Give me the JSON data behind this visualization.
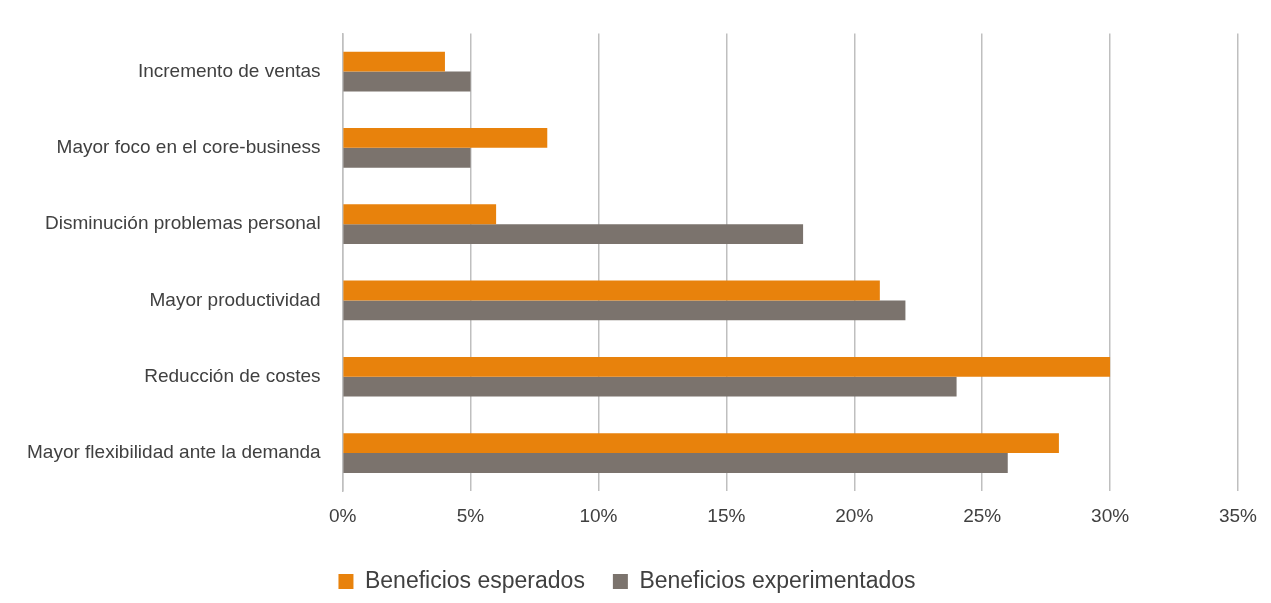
{
  "chart_data": {
    "type": "bar",
    "orientation": "horizontal",
    "categories": [
      "Incremento de ventas",
      "Mayor foco en el core-business",
      "Disminución problemas personal",
      "Mayor productividad",
      "Reducción de costes",
      "Mayor flexibilidad ante la demanda"
    ],
    "series": [
      {
        "name": "Beneficios esperados",
        "color": "#e8820c",
        "values": [
          4,
          8,
          6,
          21,
          30,
          28
        ]
      },
      {
        "name": "Beneficios experimentados",
        "color": "#7b736d",
        "values": [
          5,
          5,
          18,
          22,
          24,
          26
        ]
      }
    ],
    "xlim": [
      0,
      35
    ],
    "xticks": [
      {
        "value": 0,
        "label": "0%"
      },
      {
        "value": 5,
        "label": "5%"
      },
      {
        "value": 10,
        "label": "10%"
      },
      {
        "value": 15,
        "label": "15%"
      },
      {
        "value": 20,
        "label": "20%"
      },
      {
        "value": 25,
        "label": "25%"
      },
      {
        "value": 30,
        "label": "30%"
      },
      {
        "value": 35,
        "label": "35%"
      }
    ],
    "grid": "x",
    "legend": "bottom"
  }
}
